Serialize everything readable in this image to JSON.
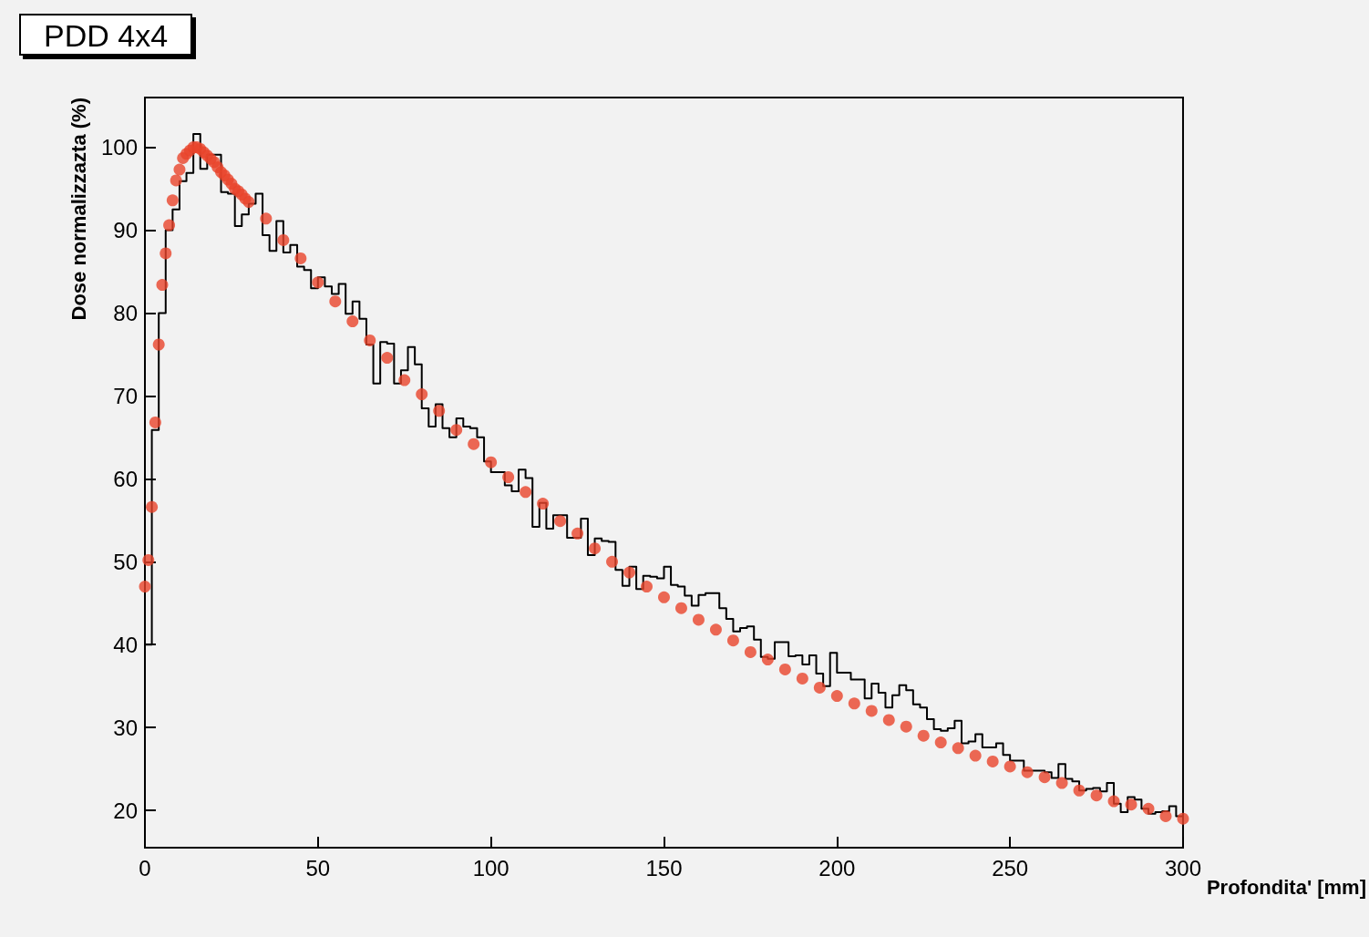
{
  "chart_data": {
    "type": "histogram",
    "title": "PDD 4x4",
    "xlabel": "Profondita' [mm]",
    "ylabel": "Dose normalizzazta (%)",
    "xlim": [
      0,
      300
    ],
    "xticks": [
      0,
      50,
      100,
      150,
      200,
      250,
      300
    ],
    "ylim": [
      15.5,
      106
    ],
    "yticks": [
      20,
      30,
      40,
      50,
      60,
      70,
      80,
      90,
      100
    ],
    "grid": false,
    "series": [
      {
        "type": "histogram",
        "color": "#000000",
        "bins": [
          0,
          2,
          4,
          6,
          8,
          10,
          12,
          14,
          16,
          18,
          20,
          22,
          24,
          26,
          28,
          30,
          32,
          34,
          36,
          38,
          40,
          42,
          44,
          46,
          48,
          50,
          52,
          54,
          56,
          58,
          60,
          62,
          64,
          66,
          68,
          70,
          72,
          74,
          76,
          78,
          80,
          82,
          84,
          86,
          88,
          90,
          92,
          94,
          96,
          98,
          100,
          102,
          104,
          106,
          108,
          110,
          112,
          114,
          116,
          118,
          120,
          122,
          124,
          126,
          128,
          130,
          132,
          134,
          136,
          138,
          140,
          142,
          144,
          146,
          148,
          150,
          152,
          154,
          156,
          158,
          160,
          162,
          164,
          166,
          168,
          170,
          172,
          174,
          176,
          178,
          180,
          182,
          184,
          186,
          188,
          190,
          192,
          194,
          196,
          198,
          200,
          202,
          204,
          206,
          208,
          210,
          212,
          214,
          216,
          218,
          220,
          222,
          224,
          226,
          228,
          230,
          232,
          234,
          236,
          238,
          240,
          242,
          244,
          246,
          248,
          250,
          252,
          254,
          256,
          258,
          260,
          262,
          264,
          266,
          268,
          270,
          272,
          274,
          276,
          278,
          280,
          282,
          284,
          286,
          288,
          290,
          292,
          294,
          296,
          298,
          300
        ],
        "values": [
          40,
          65.9,
          80,
          90,
          92.5,
          95.9,
          96.9,
          101.6,
          97.4,
          99.1,
          99.1,
          94.6,
          94.4,
          90.5,
          91.9,
          93.2,
          94.4,
          89.4,
          87.5,
          91.1,
          87.3,
          88.2,
          85.6,
          85.2,
          83,
          84.3,
          83.2,
          82.3,
          83.5,
          79.9,
          81.4,
          79.3,
          76.2,
          71.5,
          76.5,
          76.3,
          71.5,
          73.1,
          75.9,
          73.8,
          68.5,
          66.3,
          69,
          66.1,
          65,
          67.3,
          66.3,
          66.1,
          65,
          62.1,
          60.8,
          60.8,
          59.2,
          58.5,
          61.1,
          60.1,
          54.2,
          57.1,
          54,
          55.6,
          55.6,
          52.9,
          52.9,
          55.2,
          50.8,
          52.8,
          52.5,
          52.4,
          49,
          47.1,
          49.4,
          46.7,
          48.3,
          48.2,
          48,
          49.4,
          47.2,
          47,
          45.9,
          44.7,
          46,
          46.2,
          46.2,
          44.4,
          43.1,
          41.6,
          42,
          42.2,
          40.6,
          38.5,
          38.3,
          40.3,
          40.3,
          38.6,
          38.7,
          37.6,
          38.7,
          36.5,
          35,
          39,
          36.6,
          36.6,
          35.8,
          35.8,
          33.5,
          35.3,
          34.2,
          32.4,
          33.9,
          35.1,
          34.5,
          32.8,
          32.4,
          31,
          29.8,
          29.6,
          29.9,
          30.8,
          28.1,
          28.3,
          29.2,
          27.6,
          27.6,
          28.1,
          26.7,
          26,
          26,
          24.8,
          24.8,
          24.8,
          24.6,
          23.9,
          25.6,
          23.8,
          23.5,
          22.4,
          22.6,
          22.7,
          22.3,
          23.3,
          20.8,
          19.8,
          21.6,
          21.3,
          20.2,
          19.6,
          19.8,
          19.9,
          20.5,
          19.3
        ]
      },
      {
        "type": "scatter",
        "color": "#e8442a",
        "marker": "circle",
        "x": [
          0,
          1,
          2,
          3,
          4,
          5,
          6,
          7,
          8,
          9,
          10,
          11,
          12,
          13,
          14,
          15,
          16,
          17,
          18,
          19,
          20,
          21,
          22,
          23,
          24,
          25,
          26,
          27,
          28,
          29,
          30,
          35,
          40,
          45,
          50,
          55,
          60,
          65,
          70,
          75,
          80,
          85,
          90,
          95,
          100,
          105,
          110,
          115,
          120,
          125,
          130,
          135,
          140,
          145,
          150,
          155,
          160,
          165,
          170,
          175,
          180,
          185,
          190,
          195,
          200,
          205,
          210,
          215,
          220,
          225,
          230,
          235,
          240,
          245,
          250,
          255,
          260,
          265,
          270,
          275,
          280,
          285,
          290,
          295,
          300
        ],
        "values": [
          47,
          50.2,
          56.6,
          66.8,
          76.2,
          83.4,
          87.2,
          90.6,
          93.6,
          96,
          97.3,
          98.7,
          99.2,
          99.6,
          100,
          100,
          99.8,
          99.4,
          99,
          98.6,
          98.2,
          97.6,
          97,
          96.6,
          96.1,
          95.6,
          95,
          94.7,
          94.3,
          93.8,
          93.4,
          91.4,
          88.8,
          86.6,
          83.7,
          81.4,
          79,
          76.7,
          74.6,
          71.9,
          70.2,
          68.2,
          65.9,
          64.2,
          62,
          60.2,
          58.4,
          57,
          54.9,
          53.4,
          51.6,
          50,
          48.7,
          47,
          45.7,
          44.4,
          43,
          41.8,
          40.5,
          39.1,
          38.2,
          37,
          35.9,
          34.8,
          33.8,
          32.9,
          32,
          30.9,
          30.1,
          29,
          28.2,
          27.5,
          26.6,
          25.9,
          25.3,
          24.6,
          24,
          23.3,
          22.4,
          21.8,
          21.1,
          20.7,
          20.2,
          19.3,
          19
        ]
      }
    ]
  }
}
